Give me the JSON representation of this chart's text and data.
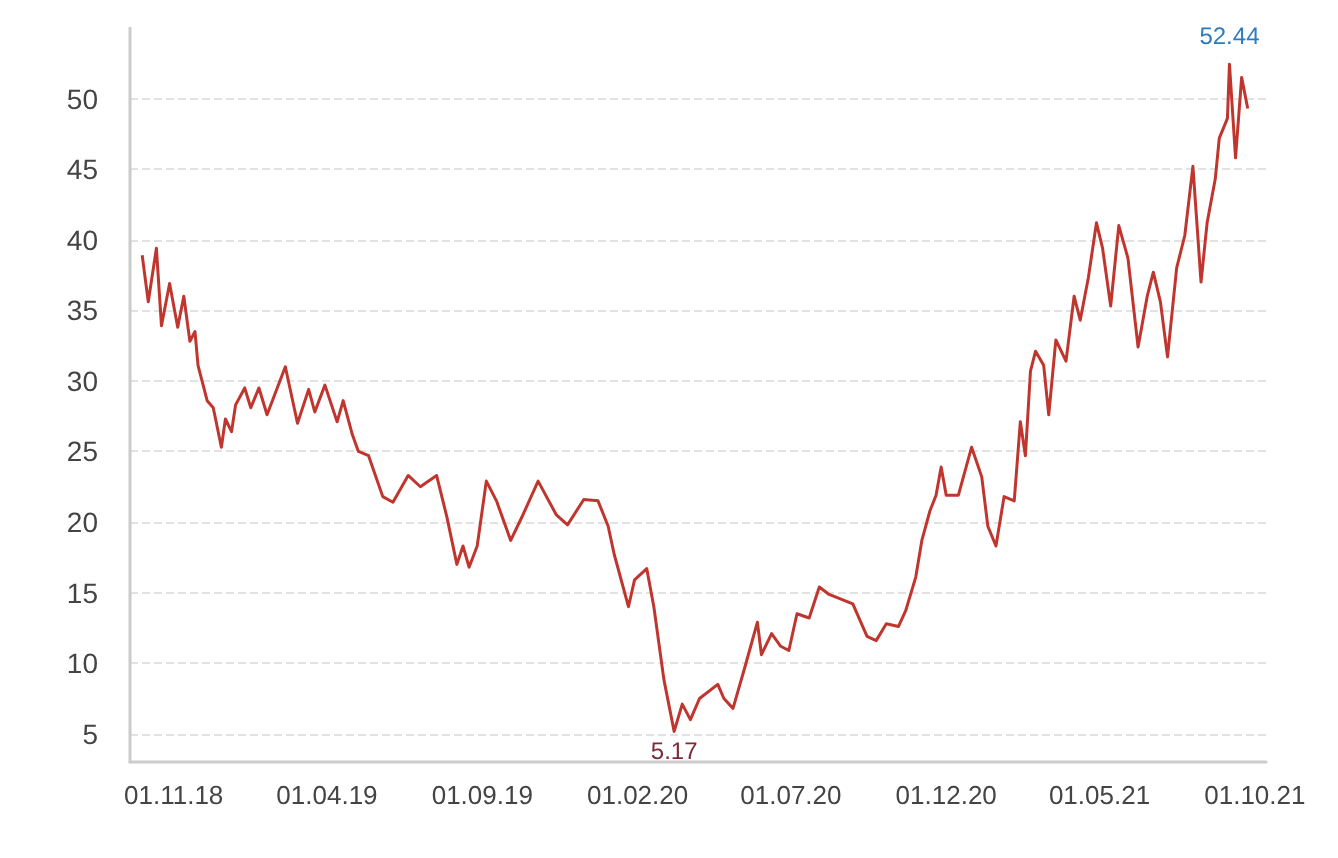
{
  "chart_data": {
    "type": "line",
    "color": "#c0362f",
    "grid": "y",
    "marker": "none",
    "line_style": "solid",
    "x": [
      "2018-10-01",
      "2018-10-07",
      "2018-10-15",
      "2018-10-20",
      "2018-10-28",
      "2018-11-05",
      "2018-11-11",
      "2018-11-17",
      "2018-11-22",
      "2018-11-25",
      "2018-12-04",
      "2018-12-10",
      "2018-12-18",
      "2018-12-22",
      "2018-12-28",
      "2019-01-01",
      "2019-01-10",
      "2019-01-16",
      "2019-01-24",
      "2019-02-01",
      "2019-02-19",
      "2019-03-03",
      "2019-03-14",
      "2019-03-20",
      "2019-03-30",
      "2019-04-11",
      "2019-04-17",
      "2019-04-26",
      "2019-05-02",
      "2019-05-12",
      "2019-05-26",
      "2019-06-05",
      "2019-06-20",
      "2019-07-02",
      "2019-07-18",
      "2019-07-28",
      "2019-08-07",
      "2019-08-13",
      "2019-08-19",
      "2019-08-27",
      "2019-09-05",
      "2019-09-15",
      "2019-09-29",
      "2019-10-11",
      "2019-10-26",
      "2019-11-13",
      "2019-11-24",
      "2019-12-10",
      "2019-12-24",
      "2020-01-03",
      "2020-01-09",
      "2020-01-23",
      "2020-01-29",
      "2020-02-10",
      "2020-02-17",
      "2020-02-27",
      "2020-03-08",
      "2020-03-16",
      "2020-03-24",
      "2020-04-02",
      "2020-04-20",
      "2020-04-26",
      "2020-05-05",
      "2020-05-17",
      "2020-05-29",
      "2020-06-02",
      "2020-06-12",
      "2020-06-21",
      "2020-06-29",
      "2020-07-07",
      "2020-07-19",
      "2020-07-29",
      "2020-08-07",
      "2020-08-31",
      "2020-09-14",
      "2020-09-23",
      "2020-10-03",
      "2020-10-15",
      "2020-10-22",
      "2020-11-01",
      "2020-11-07",
      "2020-11-15",
      "2020-11-21",
      "2020-11-26",
      "2020-12-01",
      "2020-12-13",
      "2020-12-26",
      "2021-01-05",
      "2021-01-11",
      "2021-01-19",
      "2021-01-27",
      "2021-02-06",
      "2021-02-12",
      "2021-02-17",
      "2021-02-22",
      "2021-02-27",
      "2021-03-07",
      "2021-03-12",
      "2021-03-19",
      "2021-03-29",
      "2021-04-06",
      "2021-04-12",
      "2021-04-20",
      "2021-04-28",
      "2021-05-04",
      "2021-05-12",
      "2021-05-20",
      "2021-05-29",
      "2021-06-08",
      "2021-06-17",
      "2021-06-23",
      "2021-06-30",
      "2021-07-07",
      "2021-07-16",
      "2021-07-24",
      "2021-08-01",
      "2021-08-09",
      "2021-08-15",
      "2021-08-23",
      "2021-08-27",
      "2021-09-04",
      "2021-09-06",
      "2021-09-12",
      "2021-09-18",
      "2021-09-24"
    ],
    "values": [
      38.9,
      35.6,
      39.4,
      33.9,
      36.9,
      33.8,
      36.0,
      32.8,
      33.5,
      31.1,
      28.6,
      28.1,
      25.3,
      27.3,
      26.4,
      28.3,
      29.5,
      28.1,
      29.5,
      27.6,
      31.0,
      27.0,
      29.4,
      27.8,
      29.7,
      27.1,
      28.6,
      26.2,
      25.0,
      24.7,
      21.8,
      21.4,
      23.3,
      22.5,
      23.3,
      20.4,
      17.0,
      18.3,
      16.8,
      18.3,
      22.9,
      21.5,
      18.7,
      20.5,
      22.9,
      20.5,
      19.8,
      21.6,
      21.5,
      19.7,
      17.7,
      14.0,
      15.9,
      16.7,
      14.0,
      8.8,
      5.17,
      7.1,
      6.0,
      7.5,
      8.5,
      7.5,
      6.8,
      9.8,
      12.9,
      10.6,
      12.1,
      11.2,
      10.9,
      13.5,
      13.2,
      15.4,
      14.9,
      14.2,
      11.9,
      11.6,
      12.8,
      12.6,
      13.7,
      16.1,
      18.7,
      20.8,
      21.9,
      23.9,
      21.9,
      21.9,
      25.3,
      23.2,
      19.7,
      18.3,
      21.8,
      21.5,
      27.1,
      24.7,
      30.7,
      32.1,
      31.1,
      27.6,
      32.9,
      31.4,
      36.0,
      34.3,
      37.3,
      41.2,
      39.4,
      35.3,
      41.0,
      38.7,
      32.4,
      36.0,
      37.7,
      35.6,
      31.7,
      38.0,
      40.3,
      45.2,
      37.0,
      41.2,
      44.3,
      47.2,
      48.6,
      52.44,
      45.8,
      51.5,
      49.3
    ],
    "xlim": [
      "2018-09-19",
      "2021-10-12"
    ],
    "xticks": [
      {
        "value": "2018-11-01",
        "label": "01.11.18"
      },
      {
        "value": "2019-04-01",
        "label": "01.04.19"
      },
      {
        "value": "2019-09-01",
        "label": "01.09.19"
      },
      {
        "value": "2020-02-01",
        "label": "01.02.20"
      },
      {
        "value": "2020-07-01",
        "label": "01.07.20"
      },
      {
        "value": "2020-12-01",
        "label": "01.12.20"
      },
      {
        "value": "2021-05-01",
        "label": "01.05.21"
      },
      {
        "value": "2021-10-01",
        "label": "01.10.21"
      }
    ],
    "ylim": [
      3,
      55
    ],
    "yticks": [
      5,
      10,
      15,
      20,
      25,
      30,
      35,
      40,
      45,
      50
    ],
    "annotations": [
      {
        "text": "52.44",
        "x": "2021-09-06",
        "y": 52.44
      },
      {
        "text": "5.17",
        "x": "2020-03-08",
        "y": 5.17
      }
    ]
  }
}
